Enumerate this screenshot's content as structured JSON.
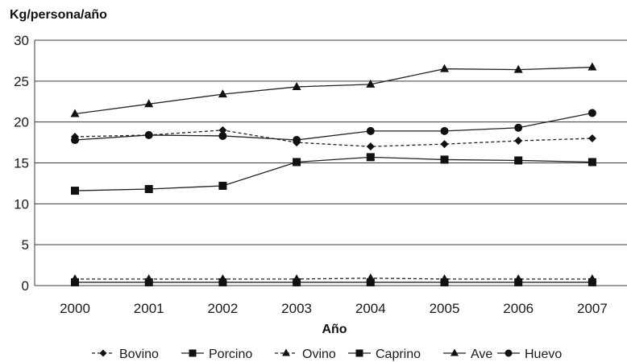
{
  "chart_data": {
    "type": "line",
    "title": "",
    "ylabel": "Kg/persona/año",
    "xlabel": "Año",
    "ylim": [
      0,
      30
    ],
    "yticks": [
      0,
      5,
      10,
      15,
      20,
      25,
      30
    ],
    "categories": [
      "2000",
      "2001",
      "2002",
      "2003",
      "2004",
      "2005",
      "2006",
      "2007"
    ],
    "grid": true,
    "legend_position": "bottom",
    "series": [
      {
        "name": "Bovino",
        "marker": "diamond",
        "dashed": true,
        "values": [
          18.2,
          18.4,
          19.0,
          17.5,
          17.0,
          17.3,
          17.7,
          18.0
        ]
      },
      {
        "name": "Porcino",
        "marker": "square",
        "dashed": false,
        "values": [
          11.6,
          11.8,
          12.2,
          15.1,
          15.7,
          15.4,
          15.3,
          15.1
        ]
      },
      {
        "name": "Ovino",
        "marker": "triangle",
        "dashed": true,
        "values": [
          0.8,
          0.8,
          0.8,
          0.8,
          0.9,
          0.8,
          0.8,
          0.8
        ]
      },
      {
        "name": "Caprino",
        "marker": "square",
        "dashed": false,
        "values": [
          0.4,
          0.4,
          0.4,
          0.4,
          0.4,
          0.4,
          0.4,
          0.4
        ]
      },
      {
        "name": "Ave",
        "marker": "triangle",
        "dashed": false,
        "values": [
          21.0,
          22.2,
          23.4,
          24.3,
          24.6,
          26.5,
          26.4,
          26.7
        ]
      },
      {
        "name": "Huevo",
        "marker": "circle",
        "dashed": false,
        "values": [
          17.8,
          18.4,
          18.3,
          17.8,
          18.9,
          18.9,
          19.3,
          21.1
        ]
      }
    ]
  }
}
